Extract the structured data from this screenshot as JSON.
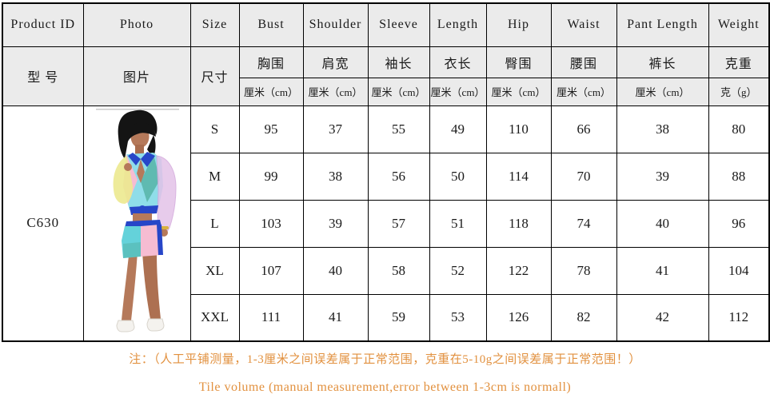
{
  "product": {
    "id": "C630"
  },
  "table": {
    "columns": [
      {
        "en": "Product ID",
        "zh": "型 号"
      },
      {
        "en": "Photo",
        "zh": "图片"
      },
      {
        "en": "Size",
        "zh": "尺寸"
      },
      {
        "en": "Bust",
        "zh": "胸围",
        "unit": "厘米（cm）"
      },
      {
        "en": "Shoulder",
        "zh": "肩宽",
        "unit": "厘米（cm）"
      },
      {
        "en": "Sleeve",
        "zh": "袖长",
        "unit": "厘米（cm）"
      },
      {
        "en": "Length",
        "zh": "衣长",
        "unit": "厘米（cm）"
      },
      {
        "en": "Hip",
        "zh": "臀围",
        "unit": "厘米（cm）"
      },
      {
        "en": "Waist",
        "zh": "腰围",
        "unit": "厘米（cm）"
      },
      {
        "en": "Pant Length",
        "zh": "裤长",
        "unit": "厘米（cm）"
      },
      {
        "en": "Weight",
        "zh": "克重",
        "unit": "克（g）"
      }
    ],
    "rows": [
      {
        "size": "S",
        "values": [
          "95",
          "37",
          "55",
          "49",
          "110",
          "66",
          "38",
          "80"
        ]
      },
      {
        "size": "M",
        "values": [
          "99",
          "38",
          "56",
          "50",
          "114",
          "70",
          "39",
          "88"
        ]
      },
      {
        "size": "L",
        "values": [
          "103",
          "39",
          "57",
          "51",
          "118",
          "74",
          "40",
          "96"
        ]
      },
      {
        "size": "XL",
        "values": [
          "107",
          "40",
          "58",
          "52",
          "122",
          "78",
          "41",
          "104"
        ]
      },
      {
        "size": "XXL",
        "values": [
          "111",
          "41",
          "59",
          "53",
          "126",
          "82",
          "42",
          "112"
        ]
      }
    ]
  },
  "photo": {
    "description": "model wearing sheer colorblock long-sleeve top and shorts set"
  },
  "notes": {
    "zh": "注：（人工平铺测量，1-3厘米之间误差属于正常范围，克重在5-10g之间误差属于正常范围！）",
    "en": "Tile volume (manual measurement,error between 1-3cm is normall)"
  },
  "colors": {
    "note_accent": "#e2913f",
    "table_border": "#000000",
    "header_bg": "#ebebeb",
    "outfit_blue": "#2746c8",
    "outfit_aqua": "#7edbe8",
    "outfit_pink": "#f6bcd2",
    "outfit_yellow": "#ece98f",
    "outfit_lilac": "#e3c2e8"
  }
}
